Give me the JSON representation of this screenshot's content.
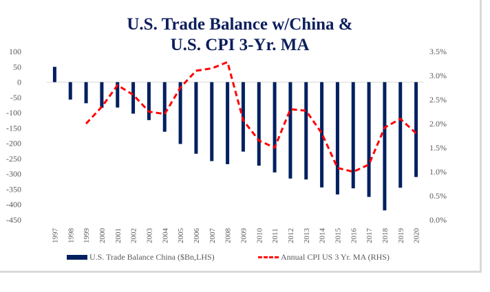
{
  "chart_data": {
    "type": "bar+line",
    "title": [
      "U.S. Trade Balance w/China &",
      "U.S. CPI 3-Yr. MA"
    ],
    "categories": [
      "1997",
      "1998",
      "1999",
      "2000",
      "2001",
      "2002",
      "2003",
      "2004",
      "2005",
      "2006",
      "2007",
      "2008",
      "2009",
      "2010",
      "2011",
      "2012",
      "2013",
      "2014",
      "2015",
      "2016",
      "2017",
      "2018",
      "2019",
      "2020"
    ],
    "series": [
      {
        "name": "U.S. Trade Balance China ($Bn,LHS)",
        "type": "bar",
        "axis": "left",
        "color": "#002060",
        "values": [
          50,
          -57,
          -69,
          -84,
          -83,
          -103,
          -124,
          -162,
          -202,
          -234,
          -258,
          -268,
          -227,
          -273,
          -295,
          -315,
          -318,
          -344,
          -367,
          -347,
          -375,
          -419,
          -345,
          -310
        ]
      },
      {
        "name": "Annual CPI  US 3 Yr. MA (RHS)",
        "type": "line",
        "axis": "right",
        "color": "#ff0000",
        "style": "dashed",
        "values": [
          null,
          null,
          2.0,
          2.35,
          2.8,
          2.6,
          2.25,
          2.2,
          2.75,
          3.1,
          3.15,
          3.28,
          2.07,
          1.65,
          1.5,
          2.3,
          2.27,
          1.8,
          1.08,
          1.0,
          1.15,
          1.92,
          2.1,
          1.8
        ]
      }
    ],
    "left_axis": {
      "ylim": [
        -450,
        100
      ],
      "ticks": [
        "100",
        "50",
        "0",
        "-50",
        "-100",
        "-150",
        "-200",
        "-250",
        "-300",
        "-350",
        "-400",
        "-450"
      ]
    },
    "right_axis": {
      "ylim": [
        0,
        3.5
      ],
      "ticks": [
        "3.5%",
        "3.0%",
        "2.5%",
        "2.0%",
        "1.5%",
        "1.0%",
        "0.5%",
        "0.0%"
      ]
    },
    "legend_position": "bottom"
  }
}
